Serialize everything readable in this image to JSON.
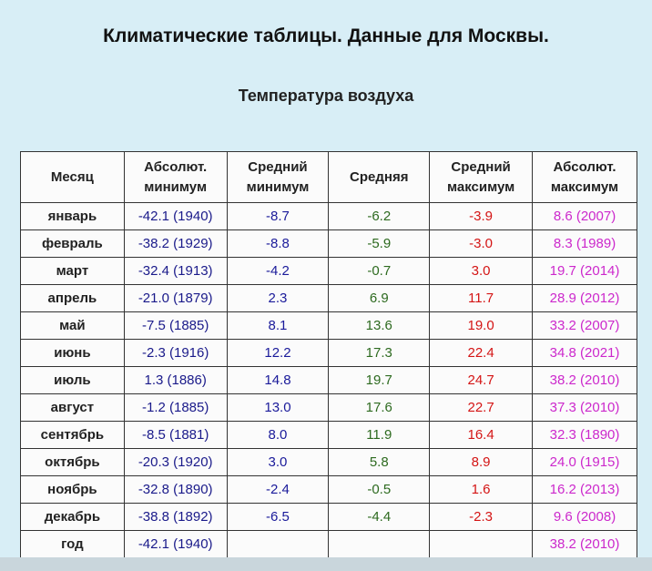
{
  "title": "Климатические таблицы. Данные для Москвы.",
  "subtitle": "Температура воздуха",
  "colors": {
    "abs_min": "#1a1a8a",
    "avg_min": "#1a1a9a",
    "avg": "#2d6a1f",
    "avg_max": "#d41414",
    "abs_max": "#cc28cc",
    "background": "#d8eef6"
  },
  "table": {
    "headers": [
      "Месяц",
      "Абсолют. минимум",
      "Средний минимум",
      "Средняя",
      "Средний максимум",
      "Абсолют. максимум"
    ],
    "rows": [
      [
        "январь",
        "-42.1 (1940)",
        "-8.7",
        "-6.2",
        "-3.9",
        "8.6 (2007)"
      ],
      [
        "февраль",
        "-38.2 (1929)",
        "-8.8",
        "-5.9",
        "-3.0",
        "8.3 (1989)"
      ],
      [
        "март",
        "-32.4 (1913)",
        "-4.2",
        "-0.7",
        "3.0",
        "19.7 (2014)"
      ],
      [
        "апрель",
        "-21.0 (1879)",
        "2.3",
        "6.9",
        "11.7",
        "28.9 (2012)"
      ],
      [
        "май",
        "-7.5 (1885)",
        "8.1",
        "13.6",
        "19.0",
        "33.2 (2007)"
      ],
      [
        "июнь",
        "-2.3 (1916)",
        "12.2",
        "17.3",
        "22.4",
        "34.8 (2021)"
      ],
      [
        "июль",
        "1.3 (1886)",
        "14.8",
        "19.7",
        "24.7",
        "38.2 (2010)"
      ],
      [
        "август",
        "-1.2 (1885)",
        "13.0",
        "17.6",
        "22.7",
        "37.3 (2010)"
      ],
      [
        "сентябрь",
        "-8.5 (1881)",
        "8.0",
        "11.9",
        "16.4",
        "32.3 (1890)"
      ],
      [
        "октябрь",
        "-20.3 (1920)",
        "3.0",
        "5.8",
        "8.9",
        "24.0 (1915)"
      ],
      [
        "ноябрь",
        "-32.8 (1890)",
        "-2.4",
        "-0.5",
        "1.6",
        "16.2 (2013)"
      ],
      [
        "декабрь",
        "-38.8 (1892)",
        "-6.5",
        "-4.4",
        "-2.3",
        "9.6 (2008)"
      ],
      [
        "год",
        "-42.1 (1940)",
        "",
        "",
        "",
        "38.2 (2010)"
      ]
    ]
  }
}
